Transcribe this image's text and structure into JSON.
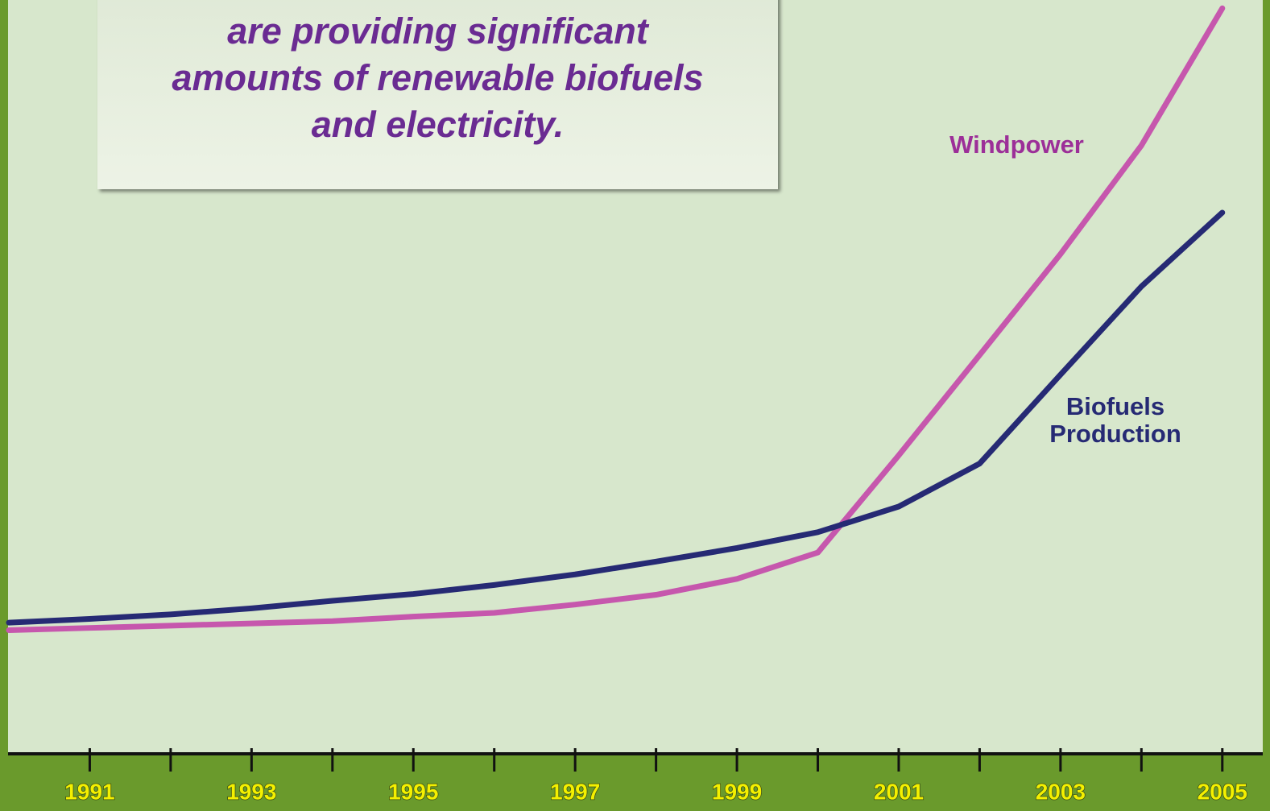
{
  "chart_data": {
    "type": "line",
    "annotation_lines": [
      "are providing significant",
      "amounts of renewable biofuels",
      "and electricity."
    ],
    "x": [
      1990,
      1991,
      1992,
      1993,
      1994,
      1995,
      1996,
      1997,
      1998,
      1999,
      2000,
      2001,
      2002,
      2003,
      2004,
      2005
    ],
    "series": [
      {
        "name": "Windpower",
        "color": "#c657ad",
        "values": [
          16.4,
          16.7,
          17.0,
          17.3,
          17.6,
          18.2,
          18.7,
          19.8,
          21.1,
          23.2,
          26.7,
          39.6,
          52.9,
          66.3,
          80.7,
          98.9
        ]
      },
      {
        "name": "Biofuels Production",
        "color": "#262a74",
        "values": [
          17.4,
          17.9,
          18.5,
          19.3,
          20.3,
          21.2,
          22.4,
          23.8,
          25.5,
          27.3,
          29.4,
          32.8,
          38.5,
          50.3,
          62.0,
          71.8
        ]
      }
    ],
    "xlim": [
      1990,
      2005.5
    ],
    "ylim": [
      0,
      100
    ],
    "xticks": [
      1991,
      1993,
      1995,
      1997,
      1999,
      2001,
      2003,
      2005
    ],
    "minor_xticks": [
      1992,
      1994,
      1996,
      1998,
      2000,
      2002,
      2004
    ]
  }
}
